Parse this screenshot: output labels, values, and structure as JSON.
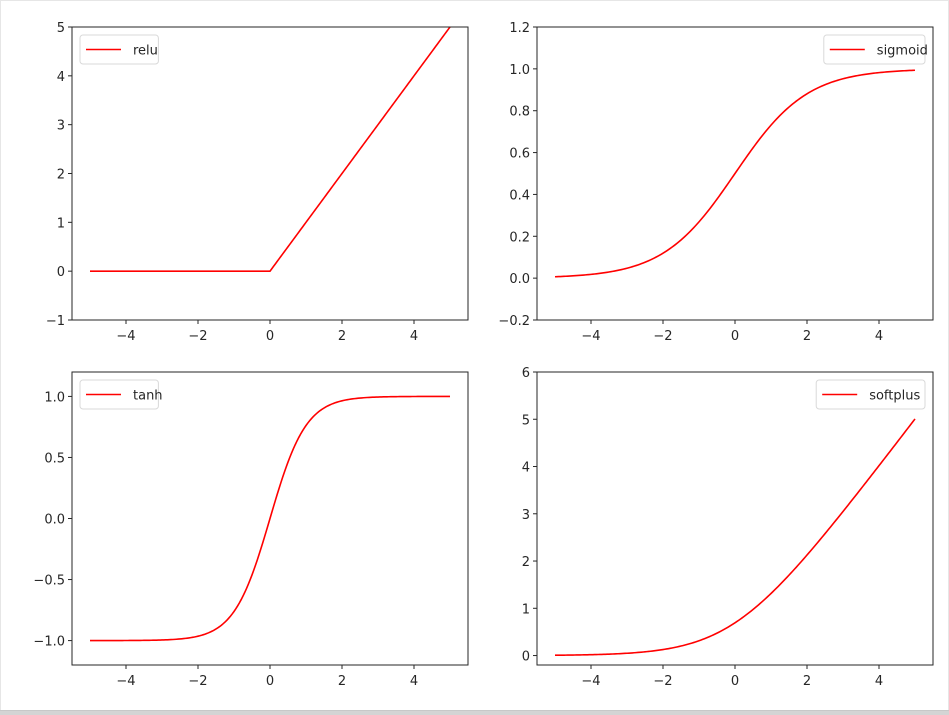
{
  "figure": {
    "line_color": "#ff0000",
    "axes_color": "#262626",
    "legend_border": "#d9d9d9"
  },
  "chart_data": [
    {
      "type": "line",
      "id": "relu",
      "title": "",
      "xlabel": "",
      "ylabel": "",
      "legend": [
        "relu"
      ],
      "legend_position": "upper left",
      "xlim": [
        -5.5,
        5.5
      ],
      "ylim": [
        -1,
        5
      ],
      "xticks": [
        -4,
        -2,
        0,
        2,
        4
      ],
      "xtick_labels": [
        "−4",
        "−2",
        "0",
        "2",
        "4"
      ],
      "yticks": [
        -1,
        0,
        1,
        2,
        3,
        4,
        5
      ],
      "ytick_labels": [
        "−1",
        "0",
        "1",
        "2",
        "3",
        "4",
        "5"
      ],
      "grid": false,
      "series": [
        {
          "name": "relu",
          "x": [
            -5,
            -4,
            -3,
            -2,
            -1,
            0,
            1,
            2,
            3,
            4,
            5
          ],
          "y": [
            0,
            0,
            0,
            0,
            0,
            0,
            1,
            2,
            3,
            4,
            5
          ]
        }
      ]
    },
    {
      "type": "line",
      "id": "sigmoid",
      "title": "",
      "xlabel": "",
      "ylabel": "",
      "legend": [
        "sigmoid"
      ],
      "legend_position": "upper right",
      "xlim": [
        -5.5,
        5.5
      ],
      "ylim": [
        -0.2,
        1.2
      ],
      "xticks": [
        -4,
        -2,
        0,
        2,
        4
      ],
      "xtick_labels": [
        "−4",
        "−2",
        "0",
        "2",
        "4"
      ],
      "yticks": [
        -0.2,
        0.0,
        0.2,
        0.4,
        0.6,
        0.8,
        1.0,
        1.2
      ],
      "ytick_labels": [
        "−0.2",
        "0.0",
        "0.2",
        "0.4",
        "0.6",
        "0.8",
        "1.0",
        "1.2"
      ],
      "grid": false,
      "series": [
        {
          "name": "sigmoid",
          "x": [
            -5,
            -4,
            -3,
            -2,
            -1,
            0,
            1,
            2,
            3,
            4,
            5
          ],
          "y": [
            0.007,
            0.018,
            0.047,
            0.119,
            0.269,
            0.5,
            0.731,
            0.881,
            0.953,
            0.982,
            0.993
          ]
        }
      ]
    },
    {
      "type": "line",
      "id": "tanh",
      "title": "",
      "xlabel": "",
      "ylabel": "",
      "legend": [
        "tanh"
      ],
      "legend_position": "upper left",
      "xlim": [
        -5.5,
        5.5
      ],
      "ylim": [
        -1.2,
        1.2
      ],
      "xticks": [
        -4,
        -2,
        0,
        2,
        4
      ],
      "xtick_labels": [
        "−4",
        "−2",
        "0",
        "2",
        "4"
      ],
      "yticks": [
        -1.0,
        -0.5,
        0.0,
        0.5,
        1.0
      ],
      "ytick_labels": [
        "−1.0",
        "−0.5",
        "0.0",
        "0.5",
        "1.0"
      ],
      "grid": false,
      "series": [
        {
          "name": "tanh",
          "x": [
            -5,
            -4,
            -3,
            -2,
            -1,
            0,
            1,
            2,
            3,
            4,
            5
          ],
          "y": [
            -1.0,
            -0.999,
            -0.995,
            -0.964,
            -0.762,
            0.0,
            0.762,
            0.964,
            0.995,
            0.999,
            1.0
          ]
        }
      ]
    },
    {
      "type": "line",
      "id": "softplus",
      "title": "",
      "xlabel": "",
      "ylabel": "",
      "legend": [
        "softplus"
      ],
      "legend_position": "upper right",
      "xlim": [
        -5.5,
        5.5
      ],
      "ylim": [
        -0.2,
        6
      ],
      "xticks": [
        -4,
        -2,
        0,
        2,
        4
      ],
      "xtick_labels": [
        "−4",
        "−2",
        "0",
        "2",
        "4"
      ],
      "yticks": [
        0,
        1,
        2,
        3,
        4,
        5,
        6
      ],
      "ytick_labels": [
        "0",
        "1",
        "2",
        "3",
        "4",
        "5",
        "6"
      ],
      "grid": false,
      "series": [
        {
          "name": "softplus",
          "x": [
            -5,
            -4,
            -3,
            -2,
            -1,
            0,
            1,
            2,
            3,
            4,
            5
          ],
          "y": [
            0.007,
            0.018,
            0.049,
            0.127,
            0.313,
            0.693,
            1.313,
            2.127,
            3.049,
            4.018,
            5.007
          ]
        }
      ]
    }
  ]
}
